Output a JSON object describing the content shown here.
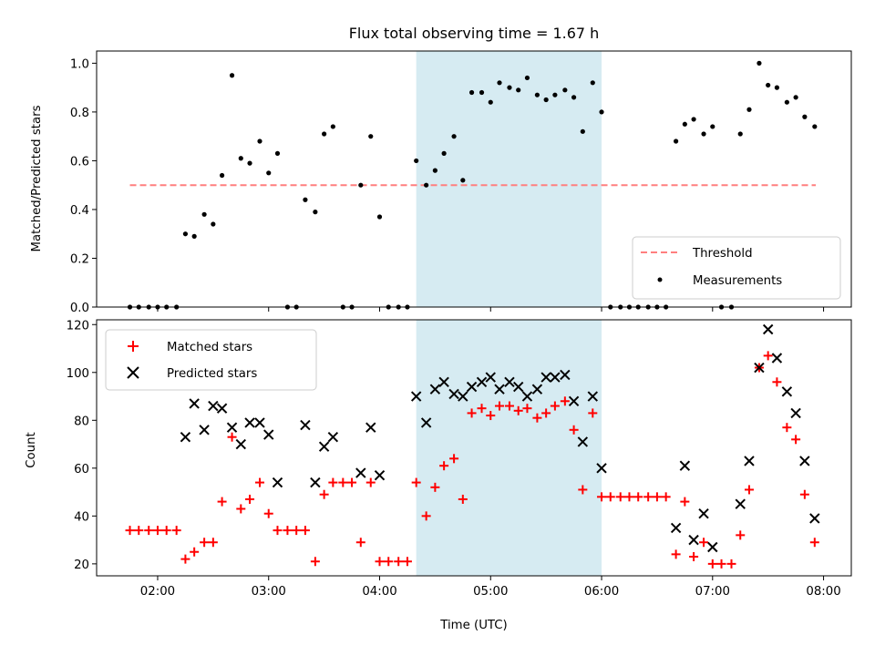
{
  "figure": {
    "title": "Flux total observing time = 1.67 h",
    "xlabel": "Time (UTC)",
    "x_tick_labels": [
      "02:00",
      "03:00",
      "04:00",
      "05:00",
      "06:00",
      "07:00",
      "08:00"
    ]
  },
  "chart_data": [
    {
      "type": "scatter",
      "panel": "top",
      "ylabel": "Matched/Predicted stars",
      "xlim": [
        1.45,
        8.25
      ],
      "ylim": [
        0.0,
        1.05
      ],
      "x_ticks": [
        2,
        3,
        4,
        5,
        6,
        7,
        8
      ],
      "y_ticks": [
        0.0,
        0.2,
        0.4,
        0.6,
        0.8,
        1.0
      ],
      "y_tick_labels": [
        "0.0",
        "0.2",
        "0.4",
        "0.6",
        "0.8",
        "1.0"
      ],
      "shaded_span": {
        "x": [
          4.33,
          6.0
        ],
        "color": "#add8e6"
      },
      "threshold": {
        "name": "Threshold",
        "y": 0.5,
        "x": [
          1.75,
          7.93
        ],
        "color": "#ff7f7f",
        "style": "dashed"
      },
      "legend_position": "lower right",
      "series": [
        {
          "name": "Measurements",
          "marker": "dot",
          "color": "#000000",
          "x": [
            1.75,
            1.83,
            1.92,
            2.0,
            2.08,
            2.17,
            2.25,
            2.33,
            2.42,
            2.5,
            2.58,
            2.67,
            2.75,
            2.83,
            2.92,
            3.0,
            3.08,
            3.17,
            3.25,
            3.33,
            3.42,
            3.5,
            3.58,
            3.67,
            3.75,
            3.83,
            3.92,
            4.0,
            4.08,
            4.17,
            4.25,
            4.33,
            4.42,
            4.5,
            4.58,
            4.67,
            4.75,
            4.83,
            4.92,
            5.0,
            5.08,
            5.17,
            5.25,
            5.33,
            5.42,
            5.5,
            5.58,
            5.67,
            5.75,
            5.83,
            5.92,
            6.0,
            6.08,
            6.17,
            6.25,
            6.33,
            6.42,
            6.5,
            6.58,
            6.67,
            6.75,
            6.83,
            6.92,
            7.0,
            7.08,
            7.17,
            7.25,
            7.33,
            7.42,
            7.5,
            7.58,
            7.67,
            7.75,
            7.83,
            7.92
          ],
          "y": [
            0,
            0,
            0,
            0,
            0,
            0,
            0.3,
            0.29,
            0.38,
            0.34,
            0.54,
            0.95,
            0.61,
            0.59,
            0.68,
            0.55,
            0.63,
            0,
            0,
            0.44,
            0.39,
            0.71,
            0.74,
            0,
            0,
            0.5,
            0.7,
            0.37,
            0,
            0,
            0,
            0.6,
            0.5,
            0.56,
            0.63,
            0.7,
            0.52,
            0.88,
            0.88,
            0.84,
            0.92,
            0.9,
            0.89,
            0.94,
            0.87,
            0.85,
            0.87,
            0.89,
            0.86,
            0.72,
            0.92,
            0.8,
            0,
            0,
            0,
            0,
            0,
            0,
            0,
            0.68,
            0.75,
            0.77,
            0.71,
            0.74,
            0,
            0,
            0.71,
            0.81,
            1.0,
            0.91,
            0.9,
            0.84,
            0.86,
            0.78,
            0.74
          ]
        }
      ]
    },
    {
      "type": "scatter",
      "panel": "bottom",
      "ylabel": "Count",
      "xlim": [
        1.45,
        8.25
      ],
      "ylim": [
        15,
        122
      ],
      "x_ticks": [
        2,
        3,
        4,
        5,
        6,
        7,
        8
      ],
      "y_ticks": [
        20,
        40,
        60,
        80,
        100,
        120
      ],
      "y_tick_labels": [
        "20",
        "40",
        "60",
        "80",
        "100",
        "120"
      ],
      "shaded_span": {
        "x": [
          4.33,
          6.0
        ],
        "color": "#add8e6"
      },
      "legend_position": "upper left",
      "series": [
        {
          "name": "Matched stars",
          "marker": "plus",
          "color": "#ff0000",
          "x": [
            1.75,
            1.83,
            1.92,
            2.0,
            2.08,
            2.17,
            2.25,
            2.33,
            2.42,
            2.5,
            2.58,
            2.67,
            2.75,
            2.83,
            2.92,
            3.0,
            3.08,
            3.17,
            3.25,
            3.33,
            3.42,
            3.5,
            3.58,
            3.67,
            3.75,
            3.83,
            3.92,
            4.0,
            4.08,
            4.17,
            4.25,
            4.33,
            4.42,
            4.5,
            4.58,
            4.67,
            4.75,
            4.83,
            4.92,
            5.0,
            5.08,
            5.17,
            5.25,
            5.33,
            5.42,
            5.5,
            5.58,
            5.67,
            5.75,
            5.83,
            5.92,
            6.0,
            6.08,
            6.17,
            6.25,
            6.33,
            6.42,
            6.5,
            6.58,
            6.67,
            6.75,
            6.83,
            6.92,
            7.0,
            7.08,
            7.17,
            7.25,
            7.33,
            7.42,
            7.5,
            7.58,
            7.67,
            7.75,
            7.83,
            7.92
          ],
          "y": [
            34,
            34,
            34,
            34,
            34,
            34,
            22,
            25,
            29,
            29,
            46,
            73,
            43,
            47,
            54,
            41,
            34,
            34,
            34,
            34,
            21,
            49,
            54,
            54,
            54,
            29,
            54,
            21,
            21,
            21,
            21,
            54,
            40,
            52,
            61,
            64,
            47,
            83,
            85,
            82,
            86,
            86,
            84,
            85,
            81,
            83,
            86,
            88,
            76,
            51,
            83,
            48,
            48,
            48,
            48,
            48,
            48,
            48,
            48,
            24,
            46,
            23,
            29,
            20,
            20,
            20,
            32,
            51,
            102,
            107,
            96,
            77,
            72,
            49,
            29
          ]
        },
        {
          "name": "Predicted stars",
          "marker": "x",
          "color": "#000000",
          "x": [
            2.25,
            2.33,
            2.42,
            2.5,
            2.58,
            2.67,
            2.75,
            2.83,
            2.92,
            3.0,
            3.08,
            3.33,
            3.42,
            3.5,
            3.58,
            3.83,
            3.92,
            4.0,
            4.33,
            4.42,
            4.5,
            4.58,
            4.67,
            4.75,
            4.83,
            4.92,
            5.0,
            5.08,
            5.17,
            5.25,
            5.33,
            5.42,
            5.5,
            5.58,
            5.67,
            5.75,
            5.83,
            5.92,
            6.0,
            6.67,
            6.75,
            6.83,
            6.92,
            7.0,
            7.25,
            7.33,
            7.42,
            7.5,
            7.58,
            7.67,
            7.75,
            7.83,
            7.92
          ],
          "y": [
            73,
            87,
            76,
            86,
            85,
            77,
            70,
            79,
            79,
            74,
            54,
            78,
            54,
            69,
            73,
            58,
            77,
            57,
            90,
            79,
            93,
            96,
            91,
            90,
            94,
            96,
            98,
            93,
            96,
            94,
            90,
            93,
            98,
            98,
            99,
            88,
            71,
            90,
            60,
            35,
            61,
            30,
            41,
            27,
            45,
            63,
            102,
            118,
            106,
            92,
            83,
            63,
            39
          ]
        }
      ]
    }
  ]
}
